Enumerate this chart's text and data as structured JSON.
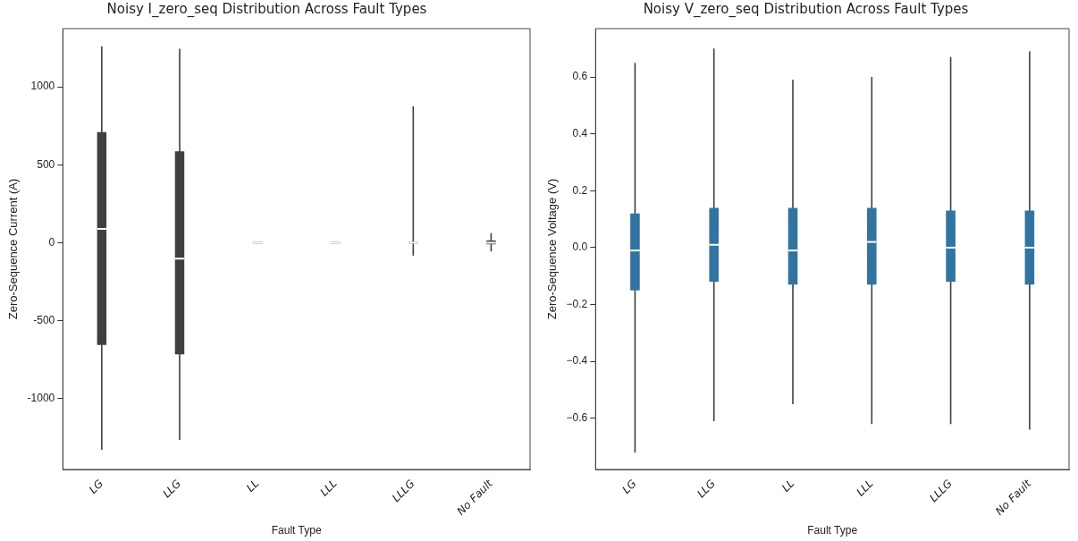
{
  "chart_data": [
    {
      "type": "box",
      "title": "Noisy I_zero_seq Distribution Across Fault Types",
      "xlabel": "Fault Type",
      "ylabel": "Zero-Sequence Current (A)",
      "categories": [
        "LG",
        "LLG",
        "LL",
        "LLL",
        "LLLG",
        "No Fault"
      ],
      "color": "#3f3f3f",
      "boxes": [
        {
          "low": -1328,
          "q1": -656,
          "median": 89,
          "q3": 710,
          "high": 1260
        },
        {
          "low": -1266,
          "q1": -716,
          "median": -102,
          "q3": 587,
          "high": 1245
        },
        {
          "low": 0,
          "q1": 0,
          "median": 0,
          "q3": 0,
          "high": 0
        },
        {
          "low": 0,
          "q1": 0,
          "median": 0,
          "q3": 0,
          "high": 0
        },
        {
          "low": -83,
          "q1": 0,
          "median": 0,
          "q3": 0,
          "high": 876
        },
        {
          "low": -56,
          "q1": -10,
          "median": 0,
          "q3": 15,
          "high": 62
        }
      ],
      "ylim": [
        -1455,
        1374
      ],
      "yticks": [
        -1000,
        -500,
        0,
        500,
        1000
      ],
      "grid": false,
      "legend": false
    },
    {
      "type": "box",
      "title": "Noisy V_zero_seq Distribution Across Fault Types",
      "xlabel": "Fault Type",
      "ylabel": "Zero-Sequence Voltage (V)",
      "categories": [
        "LG",
        "LLG",
        "LL",
        "LLL",
        "LLLG",
        "No Fault"
      ],
      "color": "#3274a1",
      "boxes": [
        {
          "low": -0.72,
          "q1": -0.15,
          "median": -0.01,
          "q3": 0.12,
          "high": 0.65
        },
        {
          "low": -0.61,
          "q1": -0.12,
          "median": 0.01,
          "q3": 0.14,
          "high": 0.7
        },
        {
          "low": -0.55,
          "q1": -0.13,
          "median": -0.01,
          "q3": 0.14,
          "high": 0.59
        },
        {
          "low": -0.62,
          "q1": -0.13,
          "median": 0.02,
          "q3": 0.14,
          "high": 0.6
        },
        {
          "low": -0.62,
          "q1": -0.12,
          "median": 0.0,
          "q3": 0.13,
          "high": 0.67
        },
        {
          "low": -0.64,
          "q1": -0.13,
          "median": 0.0,
          "q3": 0.13,
          "high": 0.69
        }
      ],
      "ylim": [
        -0.78,
        0.77
      ],
      "yticks": [
        {
          "value": -0.6,
          "label": "−0.6"
        },
        {
          "value": -0.4,
          "label": "−0.4"
        },
        {
          "value": -0.2,
          "label": "−0.2"
        },
        {
          "value": 0,
          "label": "0.0"
        },
        0.2,
        0.4,
        0.6
      ],
      "grid": false,
      "legend": false
    }
  ]
}
